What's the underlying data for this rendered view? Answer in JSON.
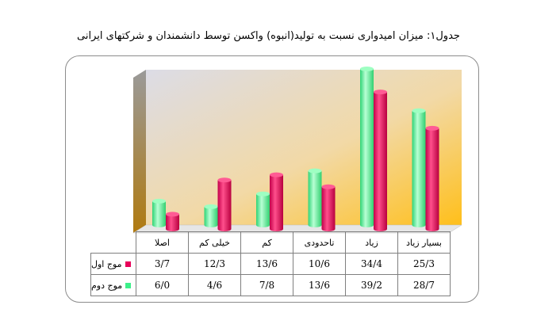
{
  "chart_data": {
    "type": "bar",
    "title": "جدول۱: میزان امیدواری نسبت به تولید(انبوه) واکسن توسط دانشمندان و شرکتهای ایرانی",
    "categories": [
      "اصلا",
      "خیلی کم",
      "کم",
      "تاحدودی",
      "زیاد",
      "بسیار زیاد"
    ],
    "series": [
      {
        "name": "موج اول",
        "values": [
          3.7,
          12.3,
          13.6,
          10.6,
          34.4,
          25.3
        ],
        "labels": [
          "3/7",
          "12/3",
          "13/6",
          "10/6",
          "34/4",
          "25/3"
        ],
        "color": "#e8005a"
      },
      {
        "name": "موج دوم",
        "values": [
          6.0,
          4.6,
          7.8,
          13.6,
          39.2,
          28.7
        ],
        "labels": [
          "6/0",
          "4/6",
          "7/8",
          "13/6",
          "39/2",
          "28/7"
        ],
        "color": "#3cf08a"
      }
    ],
    "ylim": [
      0,
      40
    ],
    "grid": false,
    "legend": "table-left",
    "background_gradient": [
      "#d9d9e6",
      "#ffc000"
    ]
  }
}
